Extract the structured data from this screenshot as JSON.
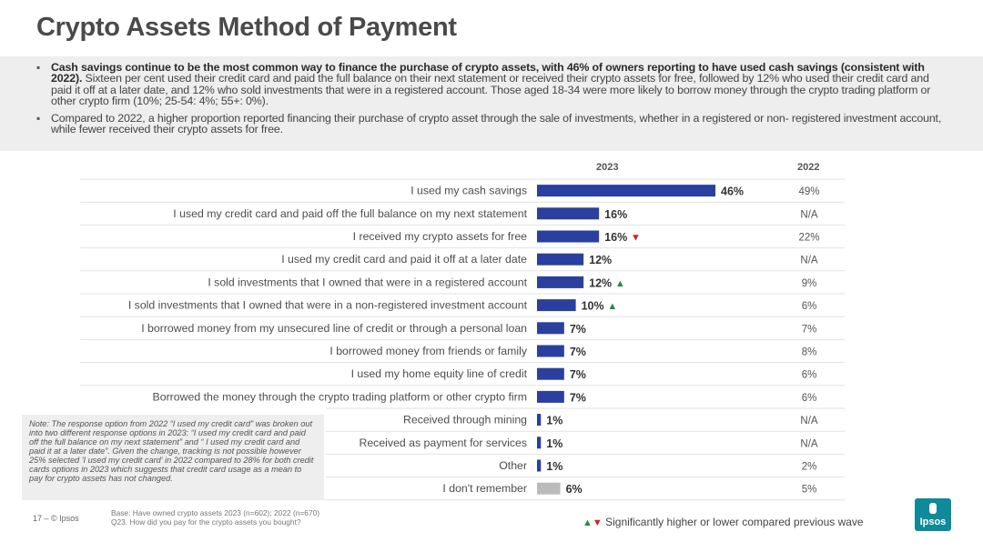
{
  "title": "Crypto Assets Method of Payment",
  "summary": {
    "bullet1_bold": "Cash savings continue to be the most common way to finance the purchase of crypto assets, with 46% of owners reporting to have used cash savings (consistent with 2022).",
    "bullet1_rest": " Sixteen per cent used their credit card and paid the full balance on their next statement or received their crypto assets for free, followed by 12% who used their credit card and paid it off at a later date, and 12% who sold investments that were in a registered account. Those aged 18-34 were more likely to borrow money through the crypto trading platform or other crypto firm (10%; 25-54: 4%; 55+: 0%).",
    "bullet2": "Compared to 2022, a higher proportion reported financing their purchase of crypto asset through the sale of investments, whether in a registered or non- registered investment account, while fewer received their crypto assets for free."
  },
  "chart_data": {
    "type": "bar",
    "orientation": "horizontal",
    "categories": [
      "I used my cash savings",
      "I used my credit card and paid off the full balance on my next statement",
      "I received my crypto assets for free",
      "I used my credit card and paid it off at a later date",
      "I sold investments that I owned that were in a registered account",
      "I sold investments that I owned that were in a non-registered investment account",
      "I borrowed money from my unsecured line of credit or through a personal loan",
      "I borrowed money from friends or family",
      "I used my home equity line of credit",
      "Borrowed the money through the crypto trading platform or other crypto firm",
      "Received through mining",
      "Received as payment for services",
      "Other",
      "I don't remember"
    ],
    "series": [
      {
        "name": "2023",
        "values": [
          46,
          16,
          16,
          12,
          12,
          10,
          7,
          7,
          7,
          7,
          1,
          1,
          1,
          6
        ],
        "labels": [
          "46%",
          "16%",
          "16%",
          "12%",
          "12%",
          "10%",
          "7%",
          "7%",
          "7%",
          "7%",
          "1%",
          "1%",
          "1%",
          "6%"
        ]
      }
    ],
    "comparison": {
      "name": "2022",
      "labels": [
        "49%",
        "N/A",
        "22%",
        "N/A",
        "9%",
        "6%",
        "7%",
        "8%",
        "6%",
        "6%",
        "N/A",
        "N/A",
        "2%",
        "5%"
      ]
    },
    "significance": [
      "",
      "",
      "down",
      "",
      "up",
      "up",
      "",
      "",
      "",
      "",
      "",
      "",
      "",
      ""
    ],
    "col_2023": "2023",
    "col_2022": "2022",
    "bar_color": "#2b3f9e",
    "muted_color": "#bbbbbb",
    "up_color": "#1f8f3a",
    "down_color": "#d32020",
    "xlim": [
      0,
      50
    ]
  },
  "note": "Note: The response option from 2022 “I used my credit card” was broken out into two different response options in 2023: “I used my credit card and paid off the full balance on my next statement” and “ I used my credit card and paid it at a later date”. Given the change, tracking is not possible however 25% selected 'I used my credit card' in 2022 compared to 28% for both credit cards options in 2023 which suggests that credit card usage as a mean to pay for crypto assets has not changed.",
  "footer": {
    "page": "17 – © Ipsos",
    "base_line1": "Base: Have owned crypto assets 2023 (n=602); 2022 (n=670)",
    "base_line2": "Q23. How did you pay for the crypto assets you bought?"
  },
  "legend": {
    "up_symbol": "▲",
    "down_symbol": "▼",
    "text": "Significantly higher or lower compared previous wave"
  },
  "logo": "Ipsos"
}
